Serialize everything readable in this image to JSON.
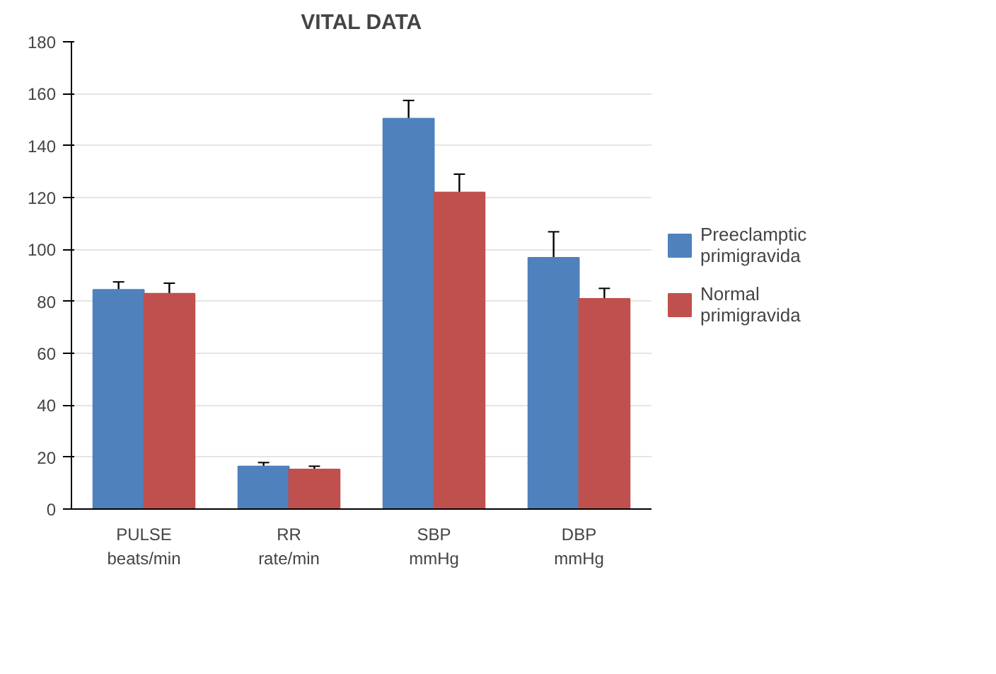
{
  "chart_data": {
    "type": "bar",
    "title": "VITAL DATA",
    "categories": [
      "PULSE\nbeats/min",
      "RR\nrate/min",
      "SBP\nmmHg",
      "DBP\nmmHg"
    ],
    "series": [
      {
        "name": "Preeclamptic primigravida",
        "color": "#4f81bd",
        "values": [
          84.5,
          16.4,
          150.4,
          96.8
        ],
        "errors": [
          3,
          1.5,
          7,
          10
        ]
      },
      {
        "name": "Normal primigravida",
        "color": "#c0504d",
        "values": [
          83,
          15.3,
          122,
          81
        ],
        "errors": [
          4,
          1.2,
          7,
          4
        ]
      }
    ],
    "ylim": [
      0,
      180
    ],
    "yticks": [
      0,
      20,
      40,
      60,
      80,
      100,
      120,
      140,
      160,
      180
    ],
    "grid": "y",
    "legend": "right"
  }
}
